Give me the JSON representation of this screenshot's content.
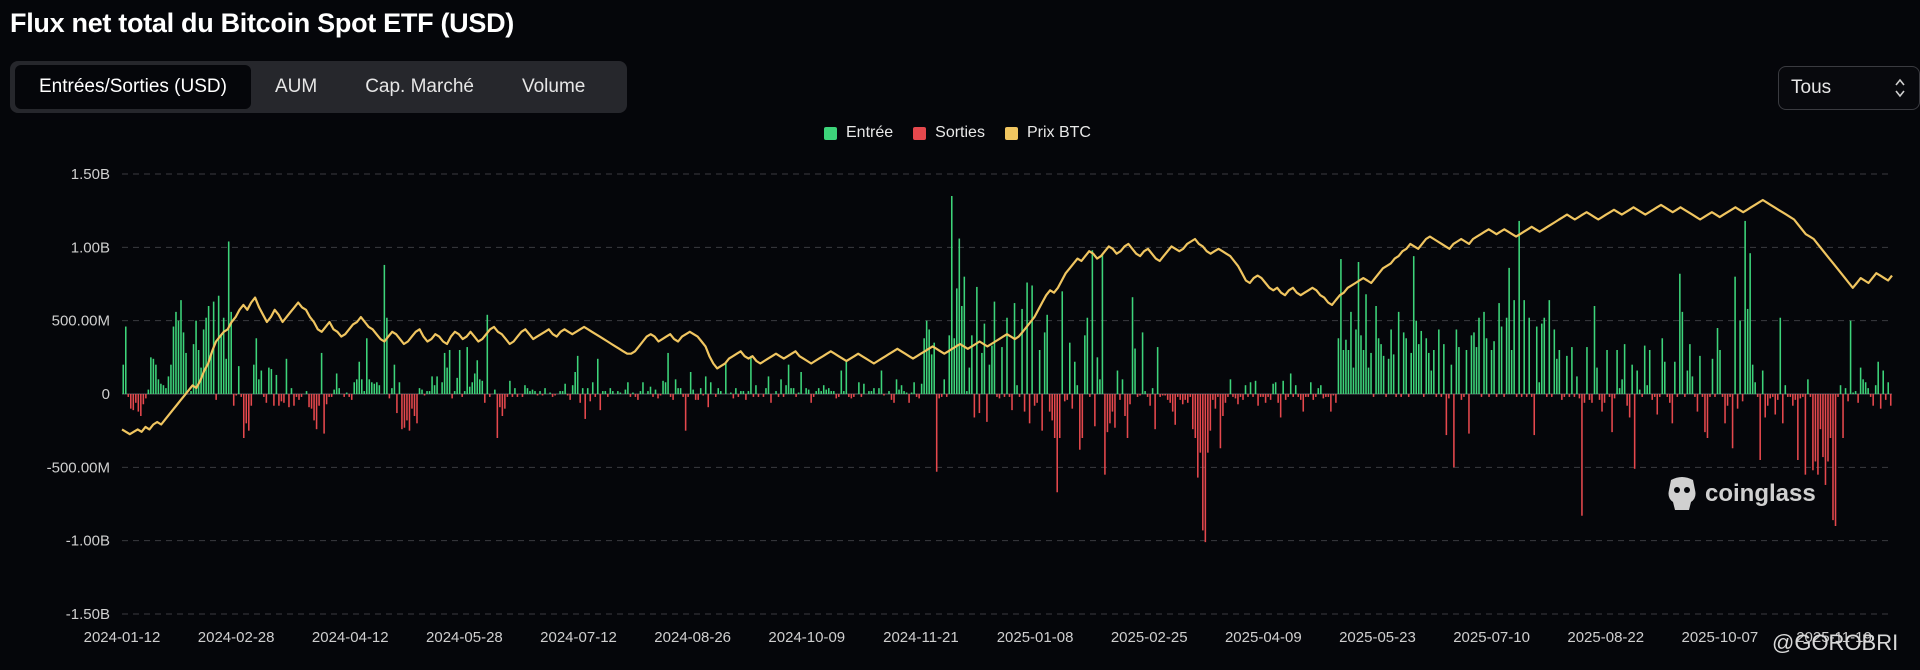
{
  "title": "Flux net total du Bitcoin Spot ETF (USD)",
  "tabs": [
    {
      "label": "Entrées/Sorties (USD)",
      "active": true
    },
    {
      "label": "AUM",
      "active": false
    },
    {
      "label": "Cap. Marché",
      "active": false
    },
    {
      "label": "Volume",
      "active": false
    }
  ],
  "range_select": {
    "value": "Tous"
  },
  "legend": [
    {
      "label": "Entrée",
      "color": "#3dd47a"
    },
    {
      "label": "Sorties",
      "color": "#e5484d"
    },
    {
      "label": "Prix BTC",
      "color": "#f0c560"
    }
  ],
  "watermark": "coinglass",
  "credit": "@GOROBRI",
  "chart_data": {
    "type": "bar+line",
    "title": "Flux net total du Bitcoin Spot ETF (USD)",
    "ylim": [
      -1500000000,
      1500000000
    ],
    "y_ticks": [
      {
        "value": 1500000000,
        "label": "1.50B"
      },
      {
        "value": 1000000000,
        "label": "1.00B"
      },
      {
        "value": 500000000,
        "label": "500.00M"
      },
      {
        "value": 0,
        "label": "0"
      },
      {
        "value": -500000000,
        "label": "-500.00M"
      },
      {
        "value": -1000000000,
        "label": "-1.00B"
      },
      {
        "value": -1500000000,
        "label": "-1.50B"
      }
    ],
    "x_ticks": [
      "2024-01-12",
      "2024-02-28",
      "2024-04-12",
      "2024-05-28",
      "2024-07-12",
      "2024-08-26",
      "2024-10-09",
      "2024-11-21",
      "2025-01-08",
      "2025-02-25",
      "2025-04-09",
      "2025-05-23",
      "2025-07-10",
      "2025-08-22",
      "2025-10-07",
      "2025-11-19"
    ],
    "bar_colors": {
      "inflow": "#3dd47a",
      "outflow": "#e5484d"
    },
    "line_color": "#f0c560",
    "flows_musd": [
      200,
      460,
      -20,
      -100,
      -110,
      -60,
      -120,
      -150,
      -70,
      -30,
      30,
      250,
      240,
      200,
      100,
      70,
      60,
      40,
      120,
      200,
      460,
      560,
      500,
      640,
      420,
      280,
      0,
      20,
      340,
      500,
      300,
      180,
      440,
      520,
      600,
      280,
      630,
      -40,
      670,
      400,
      520,
      240,
      1040,
      560,
      -80,
      -10,
      190,
      -20,
      -300,
      -200,
      -250,
      -80,
      200,
      380,
      100,
      160,
      -20,
      -60,
      180,
      170,
      -80,
      130,
      -80,
      -50,
      -60,
      240,
      -90,
      40,
      -80,
      -20,
      -40,
      -20,
      0,
      20,
      -90,
      -100,
      -180,
      -240,
      -80,
      280,
      -270,
      -70,
      -20,
      -20,
      30,
      140,
      40,
      0,
      -20,
      10,
      -20,
      -40,
      80,
      100,
      220,
      100,
      20,
      380,
      100,
      80,
      70,
      80,
      60,
      0,
      880,
      520,
      -30,
      40,
      200,
      -130,
      80,
      -240,
      -230,
      -180,
      -250,
      -100,
      -150,
      -200,
      40,
      30,
      -10,
      20,
      20,
      120,
      60,
      120,
      0,
      80,
      280,
      180,
      300,
      -30,
      20,
      110,
      300,
      -20,
      20,
      320,
      50,
      80,
      140,
      230,
      100,
      90,
      -60,
      540,
      -20,
      0,
      30,
      -300,
      -90,
      -150,
      -100,
      -20,
      90,
      -20,
      40,
      -20,
      0,
      -20,
      60,
      40,
      20,
      30,
      20,
      -10,
      20,
      -10,
      40,
      0,
      10,
      -20,
      -10,
      0,
      20,
      20,
      70,
      -10,
      -40,
      60,
      150,
      260,
      -60,
      40,
      -170,
      40,
      -50,
      80,
      -20,
      240,
      -110,
      20,
      20,
      -20,
      40,
      20,
      0,
      20,
      10,
      0,
      30,
      80,
      -20,
      10,
      -20,
      -40,
      20,
      80,
      0,
      20,
      50,
      -20,
      30,
      -30,
      -10,
      90,
      80,
      280,
      -20,
      -40,
      100,
      40,
      40,
      -20,
      -250,
      -20,
      150,
      30,
      -40,
      -40,
      40,
      -10,
      120,
      -90,
      80,
      0,
      -20,
      40,
      20,
      0,
      220,
      0,
      10,
      -30,
      40,
      -20,
      20,
      20,
      -40,
      20,
      260,
      -20,
      60,
      -20,
      0,
      -20,
      40,
      120,
      -60,
      0,
      20,
      -20,
      100,
      -20,
      60,
      200,
      40,
      40,
      -20,
      10,
      150,
      0,
      40,
      30,
      -60,
      -20,
      20,
      40,
      20,
      60,
      30,
      40,
      20,
      20,
      -30,
      -20,
      160,
      20,
      230,
      -20,
      -30,
      -20,
      0,
      80,
      -20,
      70,
      0,
      20,
      20,
      40,
      0,
      40,
      160,
      -10,
      0,
      20,
      -40,
      -60,
      100,
      30,
      60,
      20,
      10,
      -60,
      10,
      80,
      -20,
      -30,
      70,
      380,
      500,
      440,
      270,
      350,
      -530,
      -30,
      -20,
      100,
      -20,
      400,
      1350,
      380,
      720,
      1060,
      600,
      800,
      20,
      180,
      400,
      -160,
      730,
      -130,
      280,
      480,
      -190,
      200,
      330,
      630,
      -20,
      -30,
      320,
      -20,
      520,
      -20,
      -110,
      620,
      60,
      -20,
      580,
      -120,
      760,
      -200,
      740,
      -80,
      -60,
      300,
      -250,
      420,
      540,
      -120,
      -180,
      -300,
      -670,
      -300,
      700,
      -50,
      -40,
      350,
      -100,
      220,
      60,
      -380,
      -300,
      400,
      520,
      -20,
      980,
      -220,
      250,
      100,
      950,
      -550,
      -260,
      -200,
      -120,
      -230,
      160,
      -40,
      100,
      -150,
      -300,
      -70,
      660,
      310,
      -20,
      -10,
      420,
      20,
      -20,
      -80,
      40,
      -240,
      320,
      -20,
      -10,
      -10,
      -40,
      -60,
      -120,
      -210,
      -20,
      -40,
      -70,
      -40,
      -60,
      -20,
      -240,
      -300,
      -570,
      -400,
      -930,
      -1010,
      -400,
      -250,
      -40,
      -100,
      -20,
      -370,
      -150,
      -60,
      -20,
      100,
      -20,
      -30,
      -70,
      -20,
      -40,
      60,
      -20,
      80,
      -20,
      90,
      -80,
      -20,
      -20,
      -60,
      -20,
      -40,
      70,
      80,
      -60,
      -160,
      90,
      -40,
      -20,
      140,
      -20,
      60,
      -20,
      -40,
      -120,
      -20,
      -20,
      80,
      -40,
      -20,
      40,
      60,
      -30,
      -20,
      -20,
      -120,
      -10,
      -60,
      380,
      920,
      300,
      370,
      300,
      560,
      180,
      440,
      900,
      400,
      300,
      680,
      180,
      280,
      -20,
      600,
      380,
      340,
      260,
      -20,
      240,
      440,
      270,
      -20,
      560,
      -20,
      420,
      380,
      -20,
      280,
      940,
      500,
      340,
      430,
      -20,
      380,
      280,
      160,
      300,
      -20,
      440,
      -20,
      340,
      -280,
      -30,
      200,
      -500,
      440,
      320,
      -40,
      -20,
      300,
      -270,
      400,
      420,
      320,
      520,
      -20,
      560,
      380,
      -20,
      300,
      360,
      -20,
      620,
      460,
      -20,
      520,
      860,
      300,
      640,
      -20,
      1180,
      -20,
      640,
      -20,
      520,
      -20,
      -280,
      460,
      80,
      480,
      520,
      -20,
      640,
      -20,
      440,
      240,
      300,
      -40,
      -20,
      260,
      -20,
      320,
      -20,
      120,
      -30,
      -830,
      -60,
      320,
      -40,
      -60,
      600,
      180,
      -40,
      -120,
      -60,
      300,
      -20,
      -260,
      -30,
      300,
      40,
      100,
      340,
      -80,
      -160,
      200,
      -510,
      160,
      30,
      -20,
      330,
      60,
      300,
      -40,
      -20,
      -140,
      -20,
      380,
      220,
      -20,
      -60,
      -200,
      220,
      -20,
      820,
      560,
      -20,
      160,
      340,
      120,
      -20,
      -120,
      260,
      -20,
      -260,
      -300,
      -20,
      240,
      -20,
      450,
      300,
      -20,
      -200,
      -80,
      -20,
      -370,
      800,
      -100,
      500,
      -50,
      1180,
      580,
      960,
      200,
      80,
      -20,
      -450,
      160,
      -160,
      -80,
      -30,
      -20,
      -140,
      -40,
      520,
      -200,
      60,
      -20,
      -20,
      -80,
      -40,
      -450,
      -30,
      -20,
      -550,
      100,
      -20,
      -520,
      -460,
      -550,
      -240,
      -430,
      -620,
      -460,
      -300,
      -860,
      -900,
      -20,
      60,
      -300,
      40,
      -50,
      500,
      10,
      20,
      -60,
      180,
      100,
      80,
      40,
      -20,
      -80,
      60,
      220,
      -100,
      160,
      -40,
      80,
      -80
    ],
    "btc_price_norm": [
      0.06,
      0.05,
      0.04,
      0.05,
      0.06,
      0.05,
      0.07,
      0.06,
      0.08,
      0.09,
      0.08,
      0.1,
      0.12,
      0.14,
      0.16,
      0.18,
      0.2,
      0.22,
      0.24,
      0.23,
      0.26,
      0.3,
      0.33,
      0.38,
      0.42,
      0.44,
      0.46,
      0.47,
      0.5,
      0.52,
      0.55,
      0.57,
      0.55,
      0.58,
      0.6,
      0.56,
      0.53,
      0.5,
      0.52,
      0.55,
      0.53,
      0.5,
      0.52,
      0.54,
      0.56,
      0.58,
      0.56,
      0.55,
      0.52,
      0.5,
      0.47,
      0.46,
      0.48,
      0.5,
      0.47,
      0.46,
      0.44,
      0.45,
      0.47,
      0.49,
      0.5,
      0.52,
      0.5,
      0.48,
      0.47,
      0.45,
      0.43,
      0.42,
      0.44,
      0.46,
      0.45,
      0.43,
      0.41,
      0.42,
      0.44,
      0.46,
      0.47,
      0.44,
      0.42,
      0.43,
      0.45,
      0.44,
      0.42,
      0.41,
      0.44,
      0.46,
      0.45,
      0.43,
      0.44,
      0.46,
      0.44,
      0.42,
      0.43,
      0.45,
      0.47,
      0.48,
      0.46,
      0.45,
      0.43,
      0.41,
      0.42,
      0.44,
      0.46,
      0.47,
      0.45,
      0.43,
      0.44,
      0.45,
      0.46,
      0.47,
      0.45,
      0.44,
      0.46,
      0.47,
      0.46,
      0.45,
      0.46,
      0.47,
      0.48,
      0.47,
      0.46,
      0.45,
      0.44,
      0.43,
      0.42,
      0.41,
      0.4,
      0.39,
      0.38,
      0.37,
      0.37,
      0.38,
      0.4,
      0.42,
      0.44,
      0.45,
      0.44,
      0.42,
      0.43,
      0.44,
      0.45,
      0.43,
      0.42,
      0.44,
      0.45,
      0.46,
      0.45,
      0.44,
      0.42,
      0.4,
      0.36,
      0.33,
      0.31,
      0.32,
      0.33,
      0.35,
      0.36,
      0.37,
      0.38,
      0.36,
      0.35,
      0.36,
      0.34,
      0.33,
      0.34,
      0.35,
      0.36,
      0.37,
      0.36,
      0.35,
      0.36,
      0.37,
      0.38,
      0.36,
      0.35,
      0.34,
      0.33,
      0.34,
      0.35,
      0.36,
      0.37,
      0.38,
      0.37,
      0.36,
      0.35,
      0.34,
      0.35,
      0.36,
      0.37,
      0.36,
      0.35,
      0.34,
      0.33,
      0.34,
      0.35,
      0.36,
      0.37,
      0.38,
      0.39,
      0.38,
      0.37,
      0.36,
      0.35,
      0.36,
      0.37,
      0.38,
      0.39,
      0.4,
      0.39,
      0.38,
      0.37,
      0.38,
      0.39,
      0.4,
      0.41,
      0.4,
      0.39,
      0.4,
      0.41,
      0.42,
      0.41,
      0.4,
      0.41,
      0.42,
      0.43,
      0.44,
      0.45,
      0.44,
      0.43,
      0.44,
      0.46,
      0.48,
      0.5,
      0.52,
      0.55,
      0.58,
      0.61,
      0.63,
      0.62,
      0.64,
      0.67,
      0.7,
      0.72,
      0.74,
      0.76,
      0.75,
      0.77,
      0.79,
      0.78,
      0.76,
      0.77,
      0.79,
      0.81,
      0.8,
      0.78,
      0.79,
      0.81,
      0.82,
      0.8,
      0.78,
      0.77,
      0.79,
      0.8,
      0.78,
      0.76,
      0.75,
      0.77,
      0.79,
      0.81,
      0.8,
      0.79,
      0.8,
      0.82,
      0.83,
      0.84,
      0.82,
      0.81,
      0.79,
      0.78,
      0.79,
      0.8,
      0.79,
      0.78,
      0.77,
      0.75,
      0.73,
      0.7,
      0.67,
      0.66,
      0.68,
      0.69,
      0.68,
      0.66,
      0.64,
      0.63,
      0.64,
      0.62,
      0.61,
      0.63,
      0.64,
      0.62,
      0.61,
      0.62,
      0.63,
      0.64,
      0.63,
      0.61,
      0.6,
      0.58,
      0.57,
      0.59,
      0.61,
      0.62,
      0.64,
      0.65,
      0.66,
      0.67,
      0.68,
      0.67,
      0.66,
      0.68,
      0.7,
      0.72,
      0.73,
      0.74,
      0.76,
      0.77,
      0.79,
      0.8,
      0.82,
      0.81,
      0.8,
      0.82,
      0.84,
      0.85,
      0.84,
      0.83,
      0.82,
      0.81,
      0.8,
      0.82,
      0.83,
      0.84,
      0.83,
      0.82,
      0.84,
      0.85,
      0.86,
      0.87,
      0.88,
      0.87,
      0.86,
      0.87,
      0.88,
      0.87,
      0.86,
      0.85,
      0.86,
      0.87,
      0.88,
      0.89,
      0.88,
      0.87,
      0.88,
      0.89,
      0.9,
      0.91,
      0.92,
      0.93,
      0.94,
      0.93,
      0.92,
      0.93,
      0.94,
      0.95,
      0.94,
      0.93,
      0.92,
      0.93,
      0.94,
      0.95,
      0.96,
      0.95,
      0.94,
      0.95,
      0.96,
      0.97,
      0.96,
      0.95,
      0.94,
      0.95,
      0.96,
      0.97,
      0.98,
      0.97,
      0.96,
      0.95,
      0.96,
      0.97,
      0.96,
      0.95,
      0.94,
      0.93,
      0.92,
      0.93,
      0.94,
      0.95,
      0.94,
      0.93,
      0.94,
      0.95,
      0.96,
      0.97,
      0.96,
      0.95,
      0.96,
      0.97,
      0.98,
      0.99,
      1.0,
      0.99,
      0.98,
      0.97,
      0.96,
      0.95,
      0.94,
      0.93,
      0.92,
      0.9,
      0.88,
      0.86,
      0.85,
      0.84,
      0.82,
      0.8,
      0.78,
      0.76,
      0.74,
      0.72,
      0.7,
      0.68,
      0.66,
      0.64,
      0.66,
      0.68,
      0.67,
      0.66,
      0.68,
      0.7,
      0.69,
      0.68,
      0.67,
      0.69
    ]
  }
}
